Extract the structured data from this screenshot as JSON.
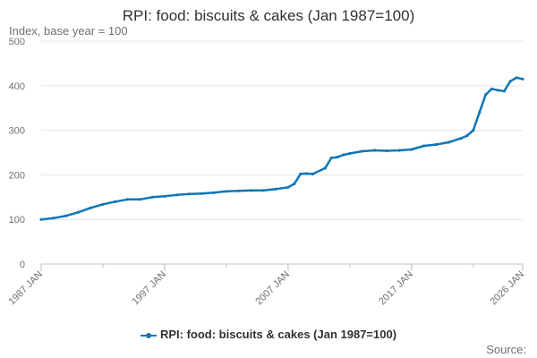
{
  "chart_data": {
    "type": "line",
    "title": "RPI: food: biscuits & cakes (Jan 1987=100)",
    "ylabel": "Index, base year = 100",
    "xlabel": "",
    "source_label": "Source:",
    "ylim": [
      0,
      500
    ],
    "yticks": [
      0,
      100,
      200,
      300,
      400,
      500
    ],
    "xlim": [
      1987.0,
      2026.0
    ],
    "xticks": [
      {
        "value": 1987.0,
        "label": "1987 JAN"
      },
      {
        "value": 1997.0,
        "label": "1997 JAN"
      },
      {
        "value": 2007.0,
        "label": "2007 JAN"
      },
      {
        "value": 2017.0,
        "label": "2017 JAN"
      },
      {
        "value": 2026.0,
        "label": "2026 JAN"
      }
    ],
    "grid": true,
    "legend_position": "bottom",
    "color": "#0f77b6",
    "series": [
      {
        "name": "RPI: food: biscuits & cakes (Jan 1987=100)",
        "x": [
          1987.0,
          1988.0,
          1989.0,
          1990.0,
          1991.0,
          1992.0,
          1993.0,
          1994.0,
          1995.0,
          1996.0,
          1997.0,
          1998.0,
          1999.0,
          2000.0,
          2001.0,
          2002.0,
          2003.0,
          2004.0,
          2005.0,
          2006.0,
          2007.0,
          2007.5,
          2008.0,
          2008.5,
          2009.0,
          2010.0,
          2010.5,
          2011.0,
          2011.5,
          2012.0,
          2013.0,
          2014.0,
          2015.0,
          2016.0,
          2017.0,
          2018.0,
          2019.0,
          2020.0,
          2021.0,
          2021.5,
          2022.0,
          2022.5,
          2023.0,
          2023.5,
          2024.0,
          2024.5,
          2025.0,
          2025.5,
          2026.0
        ],
        "y": [
          100,
          103,
          108,
          116,
          126,
          134,
          140,
          145,
          145,
          150,
          152,
          155,
          157,
          158,
          160,
          163,
          164,
          165,
          165,
          168,
          172,
          180,
          202,
          203,
          202,
          215,
          238,
          240,
          245,
          248,
          253,
          255,
          254,
          255,
          257,
          265,
          268,
          273,
          282,
          288,
          300,
          340,
          380,
          393,
          390,
          388,
          410,
          418,
          415
        ]
      }
    ]
  }
}
